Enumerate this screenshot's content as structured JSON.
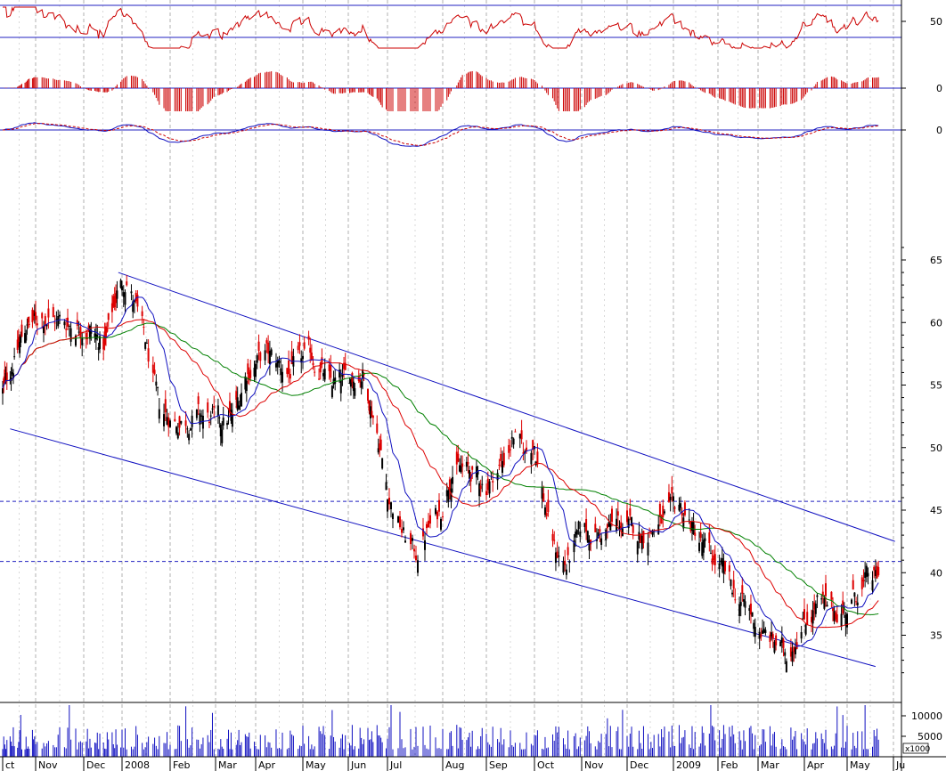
{
  "chart_data": {
    "type": "candlestick",
    "months": [
      "ct",
      "Nov",
      "Dec",
      "2008",
      "Feb",
      "Mar",
      "Apr",
      "May",
      "Jun",
      "Jul",
      "Aug",
      "Sep",
      "Oct",
      "Nov",
      "Dec",
      "2009",
      "Feb",
      "Mar",
      "Apr",
      "May",
      "Ju"
    ],
    "price": {
      "ylim": [
        31,
        67
      ],
      "ticks": [
        35,
        40,
        45,
        50,
        55,
        60,
        65
      ],
      "horizontal_levels": [
        45.7,
        40.9
      ],
      "trend_channel": {
        "upper": {
          "from": [
            "2007-12-29",
            64
          ],
          "to": [
            "2009-06-02",
            42.5
          ]
        },
        "lower": {
          "from": [
            "2007-10-08",
            51.5
          ],
          "to": [
            "2009-05-20",
            32.5
          ]
        }
      },
      "path": [
        [
          "2007-10-01",
          54.5
        ],
        [
          "2007-10-12",
          57
        ],
        [
          "2007-10-22",
          59.5
        ],
        [
          "2007-11-05",
          60.5
        ],
        [
          "2007-11-20",
          60
        ],
        [
          "2007-12-05",
          59.5
        ],
        [
          "2007-12-18",
          58
        ],
        [
          "2007-12-28",
          62.5
        ],
        [
          "2008-01-04",
          63.5
        ],
        [
          "2008-01-15",
          59
        ],
        [
          "2008-01-25",
          53
        ],
        [
          "2008-02-05",
          52
        ],
        [
          "2008-02-20",
          52.5
        ],
        [
          "2008-03-05",
          52
        ],
        [
          "2008-03-15",
          52.5
        ],
        [
          "2008-03-25",
          56
        ],
        [
          "2008-04-08",
          57.5
        ],
        [
          "2008-04-22",
          56
        ],
        [
          "2008-05-06",
          57.5
        ],
        [
          "2008-05-20",
          55
        ],
        [
          "2008-06-01",
          55.5
        ],
        [
          "2008-06-12",
          56
        ],
        [
          "2008-06-22",
          52
        ],
        [
          "2008-07-02",
          46
        ],
        [
          "2008-07-10",
          43
        ],
        [
          "2008-07-17",
          41.5
        ],
        [
          "2008-07-24",
          43.5
        ],
        [
          "2008-07-31",
          45
        ],
        [
          "2008-08-08",
          48.5
        ],
        [
          "2008-08-20",
          48
        ],
        [
          "2008-09-01",
          47
        ],
        [
          "2008-09-12",
          49
        ],
        [
          "2008-09-18",
          51
        ],
        [
          "2008-09-25",
          49.5
        ],
        [
          "2008-10-01",
          50.5
        ],
        [
          "2008-10-07",
          46
        ],
        [
          "2008-10-14",
          42
        ],
        [
          "2008-10-22",
          40.5
        ],
        [
          "2008-11-01",
          43.5
        ],
        [
          "2008-11-12",
          43
        ],
        [
          "2008-11-25",
          44
        ],
        [
          "2008-12-10",
          43
        ],
        [
          "2008-12-25",
          44
        ],
        [
          "2009-01-05",
          45.5
        ],
        [
          "2009-01-12",
          44
        ],
        [
          "2009-01-25",
          41.5
        ],
        [
          "2009-02-05",
          40
        ],
        [
          "2009-02-15",
          38
        ],
        [
          "2009-02-25",
          36.5
        ],
        [
          "2009-03-05",
          35
        ],
        [
          "2009-03-12",
          34.5
        ],
        [
          "2009-03-20",
          33.5
        ],
        [
          "2009-03-31",
          36
        ],
        [
          "2009-04-10",
          37.5
        ],
        [
          "2009-04-20",
          37
        ],
        [
          "2009-04-30",
          37
        ],
        [
          "2009-05-08",
          38.5
        ],
        [
          "2009-05-15",
          39.5
        ],
        [
          "2009-05-22",
          39.5
        ]
      ]
    },
    "rsi": {
      "ticks": [
        50
      ],
      "levels": [
        70,
        30
      ]
    },
    "macd_histogram": {
      "ticks": [
        0
      ]
    },
    "macd": {
      "ticks": [
        0
      ]
    },
    "volume": {
      "ticks": [
        5000,
        10000
      ],
      "multiplier": "x1000"
    }
  }
}
